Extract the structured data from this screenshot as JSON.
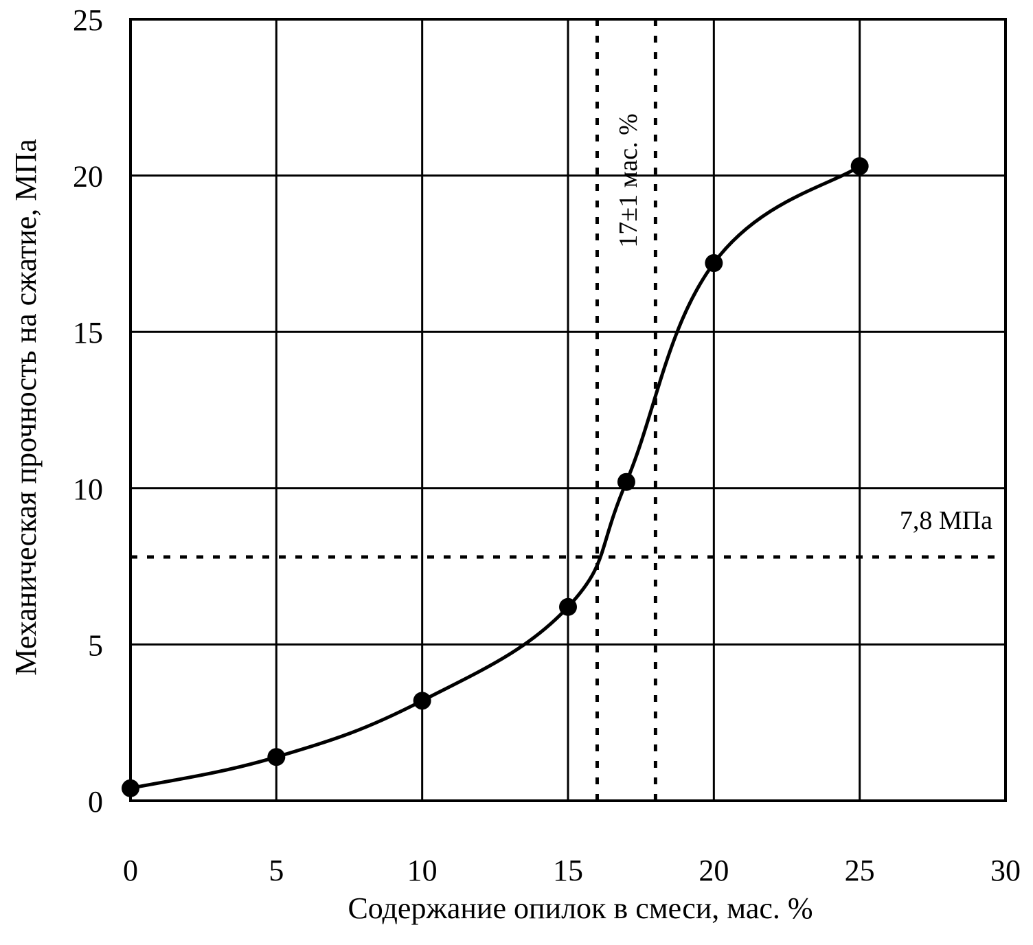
{
  "chart_data": {
    "type": "line",
    "xlabel": "Содержание опилок в смеси, мас. %",
    "ylabel": "Механическая прочность на сжатие, МПа",
    "xlim": [
      0,
      30
    ],
    "ylim": [
      0,
      25
    ],
    "x_ticks": [
      "0",
      "5",
      "10",
      "15",
      "20",
      "25",
      "30"
    ],
    "y_ticks": [
      "0",
      "5",
      "10",
      "15",
      "20",
      "25"
    ],
    "grid": true,
    "series": [
      {
        "x": [
          0,
          5,
          10,
          15,
          17,
          20,
          25
        ],
        "y": [
          0.4,
          1.4,
          3.2,
          6.2,
          10.2,
          17.2,
          20.3
        ]
      }
    ],
    "reference_lines": {
      "horizontal_y": 7.8,
      "vertical_x": [
        16,
        18
      ]
    },
    "annotations": {
      "horizontal_label": "7,8 МПа",
      "vertical_label": "17±1 мас. %"
    }
  }
}
